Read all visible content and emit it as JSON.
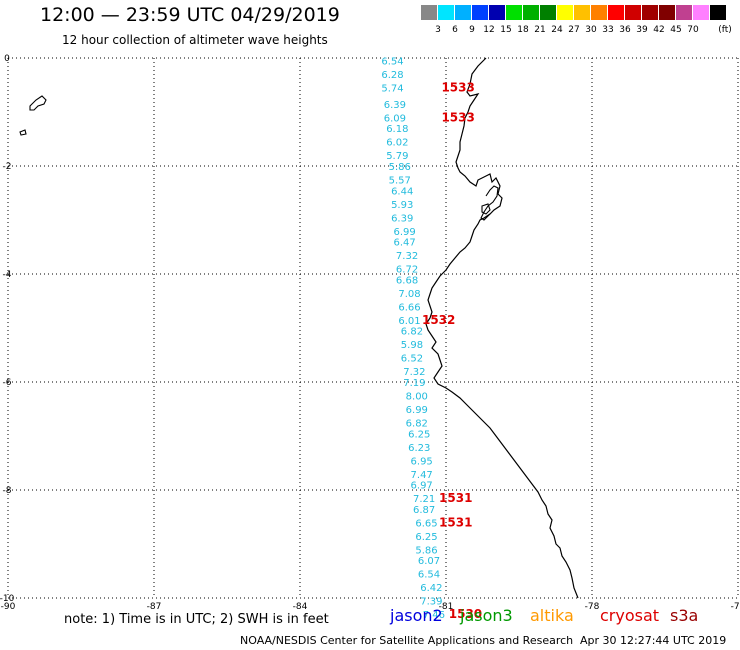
{
  "header": {
    "title": "12:00 — 23:59 UTC 04/29/2019",
    "subtitle": "12 hour collection of altimeter wave heights"
  },
  "legend": {
    "unit": "(ft)",
    "bins": [
      {
        "label": "",
        "color": "#888888"
      },
      {
        "label": "3",
        "color": "#00e5ff"
      },
      {
        "label": "6",
        "color": "#00b0ff"
      },
      {
        "label": "9",
        "color": "#0040ff"
      },
      {
        "label": "12",
        "color": "#0000b0"
      },
      {
        "label": "15",
        "color": "#00e000"
      },
      {
        "label": "18",
        "color": "#00b000"
      },
      {
        "label": "21",
        "color": "#008000"
      },
      {
        "label": "24",
        "color": "#ffff00"
      },
      {
        "label": "27",
        "color": "#ffc000"
      },
      {
        "label": "30",
        "color": "#ff8000"
      },
      {
        "label": "33",
        "color": "#ff0000"
      },
      {
        "label": "36",
        "color": "#d00000"
      },
      {
        "label": "39",
        "color": "#a00000"
      },
      {
        "label": "42",
        "color": "#800000"
      },
      {
        "label": "45",
        "color": "#c04090"
      },
      {
        "label": "70",
        "color": "#ff80ff"
      },
      {
        "label": "",
        "color": "#000000"
      }
    ]
  },
  "map": {
    "x_range": [
      -90,
      -75
    ],
    "y_range": [
      -10,
      0
    ],
    "x_ticks": [
      "-90",
      "-87",
      "-84",
      "-81",
      "-78",
      "-75"
    ],
    "y_ticks": [
      "0",
      "-2",
      "-4",
      "-6",
      "-8",
      "-10"
    ],
    "swh_color": "#22bbdd",
    "time_color": "#dd0000",
    "swh": [
      {
        "lon": -82.1,
        "lat": -0.05,
        "v": "6.54"
      },
      {
        "lon": -82.1,
        "lat": -0.3,
        "v": "6.28"
      },
      {
        "lon": -82.1,
        "lat": -0.55,
        "v": "5.74"
      },
      {
        "lon": -82.05,
        "lat": -0.85,
        "v": "6.39"
      },
      {
        "lon": -82.05,
        "lat": -1.1,
        "v": "6.09"
      },
      {
        "lon": -82.0,
        "lat": -1.3,
        "v": "6.18"
      },
      {
        "lon": -82.0,
        "lat": -1.55,
        "v": "6.02"
      },
      {
        "lon": -82.0,
        "lat": -1.8,
        "v": "5.79"
      },
      {
        "lon": -81.95,
        "lat": -2.0,
        "v": "5.86"
      },
      {
        "lon": -81.95,
        "lat": -2.25,
        "v": "5.57"
      },
      {
        "lon": -81.9,
        "lat": -2.45,
        "v": "6.44"
      },
      {
        "lon": -81.9,
        "lat": -2.7,
        "v": "5.93"
      },
      {
        "lon": -81.9,
        "lat": -2.95,
        "v": "6.39"
      },
      {
        "lon": -81.85,
        "lat": -3.2,
        "v": "6.99"
      },
      {
        "lon": -81.85,
        "lat": -3.4,
        "v": "6.47"
      },
      {
        "lon": -81.8,
        "lat": -3.65,
        "v": "7.32"
      },
      {
        "lon": -81.8,
        "lat": -3.9,
        "v": "6.72"
      },
      {
        "lon": -81.8,
        "lat": -4.1,
        "v": "6.68"
      },
      {
        "lon": -81.75,
        "lat": -4.35,
        "v": "7.08"
      },
      {
        "lon": -81.75,
        "lat": -4.6,
        "v": "6.66"
      },
      {
        "lon": -81.75,
        "lat": -4.85,
        "v": "6.01"
      },
      {
        "lon": -81.7,
        "lat": -5.05,
        "v": "6.82"
      },
      {
        "lon": -81.7,
        "lat": -5.3,
        "v": "5.98"
      },
      {
        "lon": -81.7,
        "lat": -5.55,
        "v": "6.52"
      },
      {
        "lon": -81.65,
        "lat": -5.8,
        "v": "7.32"
      },
      {
        "lon": -81.65,
        "lat": -6.0,
        "v": "7.19"
      },
      {
        "lon": -81.6,
        "lat": -6.25,
        "v": "8.00"
      },
      {
        "lon": -81.6,
        "lat": -6.5,
        "v": "6.99"
      },
      {
        "lon": -81.6,
        "lat": -6.75,
        "v": "6.82"
      },
      {
        "lon": -81.55,
        "lat": -6.95,
        "v": "6.25"
      },
      {
        "lon": -81.55,
        "lat": -7.2,
        "v": "6.23"
      },
      {
        "lon": -81.5,
        "lat": -7.45,
        "v": "6.95"
      },
      {
        "lon": -81.5,
        "lat": -7.7,
        "v": "7.47"
      },
      {
        "lon": -81.5,
        "lat": -7.9,
        "v": "6.97"
      },
      {
        "lon": -81.45,
        "lat": -8.15,
        "v": "7.21"
      },
      {
        "lon": -81.45,
        "lat": -8.35,
        "v": "6.87"
      },
      {
        "lon": -81.4,
        "lat": -8.6,
        "v": "6.65"
      },
      {
        "lon": -81.4,
        "lat": -8.85,
        "v": "6.25"
      },
      {
        "lon": -81.4,
        "lat": -9.1,
        "v": "5.86"
      },
      {
        "lon": -81.35,
        "lat": -9.3,
        "v": "6.07"
      },
      {
        "lon": -81.35,
        "lat": -9.55,
        "v": "6.54"
      },
      {
        "lon": -81.3,
        "lat": -9.8,
        "v": "6.42"
      },
      {
        "lon": -81.3,
        "lat": -10.05,
        "v": "7.39"
      },
      {
        "lon": -81.25,
        "lat": -10.3,
        "v": "7.46"
      }
    ],
    "times": [
      {
        "lon": -80.75,
        "lat": -0.55,
        "v": "1533"
      },
      {
        "lon": -80.75,
        "lat": -1.1,
        "v": "1533"
      },
      {
        "lon": -81.15,
        "lat": -4.85,
        "v": "1532"
      },
      {
        "lon": -80.8,
        "lat": -8.15,
        "v": "1531"
      },
      {
        "lon": -80.8,
        "lat": -8.6,
        "v": "1531"
      },
      {
        "lon": -80.6,
        "lat": -10.3,
        "v": "1530"
      }
    ]
  },
  "footer": {
    "note": "note:  1) Time is in UTC;  2) SWH is in feet",
    "satellites": [
      {
        "name": "jason2",
        "color": "#0000dd"
      },
      {
        "name": "jason3",
        "color": "#009900"
      },
      {
        "name": "altika",
        "color": "#ff9900"
      },
      {
        "name": "cryosat",
        "color": "#dd0000"
      },
      {
        "name": "s3a",
        "color": "#990000"
      }
    ],
    "credit": "NOAA/NESDIS Center for Satellite Applications and Research",
    "timestamp": "Apr 30 12:27:44 UTC 2019"
  }
}
